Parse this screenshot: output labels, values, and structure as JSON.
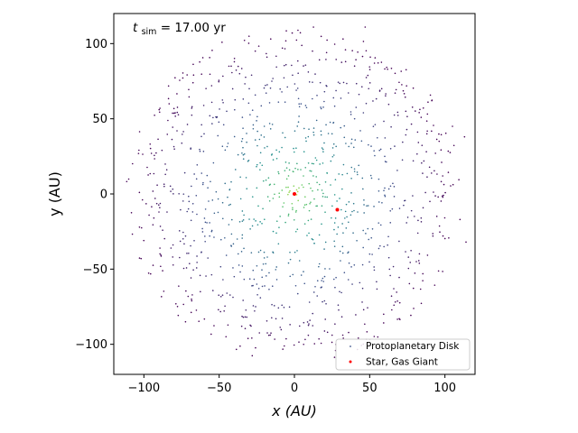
{
  "chart_data": {
    "type": "scatter",
    "title": "",
    "xlabel": "x (AU)",
    "ylabel": "y (AU)",
    "xlim": [
      -120,
      120
    ],
    "ylim": [
      -120,
      120
    ],
    "xticks": [
      -100,
      -50,
      0,
      50,
      100
    ],
    "yticks": [
      -100,
      -50,
      0,
      50,
      100
    ],
    "xtick_labels": [
      "−100",
      "−50",
      "0",
      "50",
      "100"
    ],
    "ytick_labels": [
      "−100",
      "−50",
      "0",
      "50",
      "100"
    ],
    "grid": false,
    "legend_position": "lower-right",
    "annotation": {
      "var": "t",
      "sub": "sim",
      "rest": " = 17.00 yr"
    },
    "colormap": [
      "#440154",
      "#3b528b",
      "#21918c",
      "#5ec962",
      "#fde725"
    ],
    "series": [
      {
        "name": "Protoplanetary Disk",
        "marker": "dot",
        "approx_count": 1000,
        "radial_extent": 112,
        "color_by": "radial distance (yellow center to purple edge)",
        "points": [
          [
            -95.0,
            27.0
          ],
          [
            -98.5,
            -6.5
          ],
          [
            -94.0,
            -20.5
          ],
          [
            -88.0,
            29.0
          ],
          [
            -86.5,
            5.0
          ],
          [
            -90.0,
            -12.0
          ],
          [
            -82.0,
            -36.0
          ],
          [
            -78.0,
            42.0
          ],
          [
            -73.5,
            -49.5
          ],
          [
            -68.0,
            58.0
          ],
          [
            -62.5,
            -65.0
          ],
          [
            -55.0,
            72.0
          ],
          [
            -50.5,
            -77.0
          ],
          [
            -42.0,
            85.0
          ],
          [
            -35.0,
            -88.0
          ],
          [
            -26.0,
            95.0
          ],
          [
            -17.0,
            -94.0
          ],
          [
            -8.0,
            97.0
          ],
          [
            3.0,
            -98.5
          ],
          [
            12.0,
            95.0
          ],
          [
            22.0,
            -92.0
          ],
          [
            34.0,
            88.0
          ],
          [
            46.0,
            -77.0
          ],
          [
            58.0,
            70.0
          ],
          [
            66.0,
            -63.0
          ],
          [
            74.0,
            55.0
          ],
          [
            81.0,
            -45.0
          ],
          [
            88.0,
            40.0
          ],
          [
            92.0,
            -28.0
          ],
          [
            98.5,
            12.0
          ],
          [
            95.5,
            -2.0
          ],
          [
            90.0,
            -5.0
          ],
          [
            113.0,
            38.0
          ],
          [
            114.0,
            -32.0
          ],
          [
            110.0,
            -17.0
          ],
          [
            105.0,
            45.0
          ],
          [
            47.0,
            111.0
          ],
          [
            -60.0,
            40.0
          ],
          [
            -55.0,
            -25.0
          ],
          [
            -45.0,
            55.0
          ],
          [
            -40.0,
            -55.0
          ],
          [
            -30.0,
            70.0
          ],
          [
            -25.0,
            -60.0
          ],
          [
            -15.0,
            75.0
          ],
          [
            10.0,
            -72.0
          ],
          [
            20.0,
            68.0
          ],
          [
            30.0,
            -65.0
          ],
          [
            40.0,
            50.0
          ],
          [
            50.0,
            -40.0
          ],
          [
            60.0,
            25.0
          ],
          [
            65.0,
            -10.0
          ],
          [
            -65.0,
            10.0
          ],
          [
            -70.0,
            -5.0
          ],
          [
            -35.0,
            35.0
          ],
          [
            -38.0,
            -30.0
          ],
          [
            -20.0,
            45.0
          ],
          [
            -18.0,
            -42.0
          ],
          [
            25.0,
            40.0
          ],
          [
            32.0,
            -35.0
          ],
          [
            40.0,
            15.0
          ],
          [
            42.0,
            -12.0
          ],
          [
            -42.0,
            8.0
          ],
          [
            -10.0,
            28.0
          ],
          [
            -12.0,
            -26.0
          ],
          [
            14.0,
            24.0
          ],
          [
            18.0,
            -20.0
          ],
          [
            24.0,
            6.0
          ],
          [
            -25.0,
            4.0
          ],
          [
            -24.0,
            -8.0
          ],
          [
            6.0,
            12.0
          ],
          [
            -5.0,
            10.0
          ],
          [
            8.0,
            -7.0
          ],
          [
            -7.0,
            -6.0
          ],
          [
            3.0,
            4.0
          ],
          [
            -3.0,
            2.0
          ],
          [
            12.0,
            2.0
          ],
          [
            -10.0,
            -2.0
          ],
          [
            1.0,
            -12.0
          ],
          [
            -1.0,
            15.0
          ],
          [
            5.0,
            6.0
          ]
        ]
      },
      {
        "name": "Star, Gas Giant",
        "marker": "dot",
        "color": "#ff0000",
        "points": [
          [
            0,
            0
          ],
          [
            28.5,
            -10.5
          ]
        ]
      }
    ]
  }
}
